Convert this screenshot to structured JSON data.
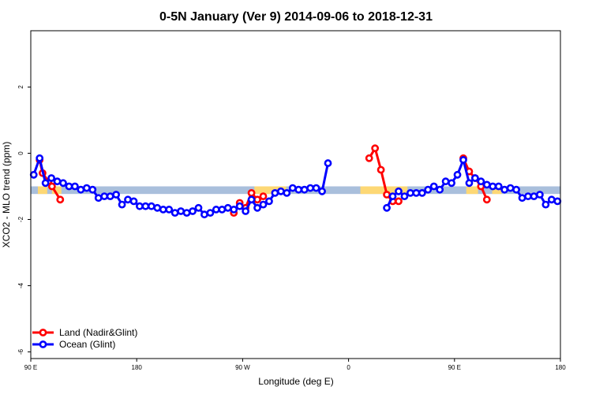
{
  "chart_data": {
    "type": "line",
    "title": "0-5N January (Ver 9)   2014-09-06 to 2018-12-31",
    "xlabel": "Longitude (deg E)",
    "ylabel": "XCO2 - MLO trend (ppm)",
    "xlim": [
      90,
      540
    ],
    "ylim": [
      -6.2,
      3.7
    ],
    "x_ticks": [
      {
        "value": 90,
        "label": "90 E"
      },
      {
        "value": 180,
        "label": "180"
      },
      {
        "value": 270,
        "label": "90 W"
      },
      {
        "value": 360,
        "label": "0"
      },
      {
        "value": 450,
        "label": "90 E"
      },
      {
        "value": 540,
        "label": "180"
      }
    ],
    "y_ticks": [
      {
        "value": 2,
        "label": "2"
      },
      {
        "value": 0,
        "label": "0"
      },
      {
        "value": -2,
        "label": "-2"
      },
      {
        "value": -4,
        "label": "-4"
      },
      {
        "value": -6,
        "label": "-6"
      }
    ],
    "grid": false,
    "legend_position": "bottom-left",
    "surface_band": {
      "y_top": -1.0,
      "y_bottom": -1.23,
      "ocean_color": "#a9bfdc",
      "land_color": "#fdd875",
      "land_segments": [
        [
          96,
          104
        ],
        [
          108,
          116
        ],
        [
          280,
          307
        ],
        [
          370,
          410
        ],
        [
          460,
          470
        ],
        [
          482,
          490
        ]
      ]
    },
    "series": [
      {
        "name": "Land (Nadir&Glint)",
        "color": "#ff0000",
        "segments": [
          [
            [
              97.5,
              -0.2
            ],
            [
              100,
              -0.6
            ],
            [
              105,
              -0.85
            ],
            [
              108,
              -1.0
            ],
            [
              115,
              -1.4
            ]
          ],
          [
            [
              262.5,
              -1.8
            ],
            [
              267.5,
              -1.5
            ],
            [
              272.5,
              -1.65
            ],
            [
              277.5,
              -1.2
            ],
            [
              282.5,
              -1.4
            ],
            [
              287.5,
              -1.3
            ]
          ],
          [
            [
              377.5,
              -0.15
            ],
            [
              382.5,
              0.15
            ],
            [
              387.5,
              -0.5
            ],
            [
              392.5,
              -1.25
            ],
            [
              397.5,
              -1.45
            ],
            [
              402.5,
              -1.45
            ]
          ],
          [
            [
              457.5,
              -0.15
            ],
            [
              462.5,
              -0.55
            ],
            [
              467.5,
              -0.75
            ],
            [
              472.5,
              -1.0
            ],
            [
              477.5,
              -1.4
            ]
          ]
        ]
      },
      {
        "name": "Ocean (Glint)",
        "color": "#0000ff",
        "segments": [
          [
            [
              92.5,
              -0.65
            ],
            [
              97.5,
              -0.15
            ],
            [
              102.5,
              -0.9
            ],
            [
              107.5,
              -0.75
            ],
            [
              112.5,
              -0.85
            ],
            [
              117.5,
              -0.9
            ],
            [
              122.5,
              -1.0
            ],
            [
              127.5,
              -1.0
            ],
            [
              132.5,
              -1.1
            ],
            [
              137.5,
              -1.05
            ],
            [
              142.5,
              -1.1
            ],
            [
              147.5,
              -1.35
            ],
            [
              152.5,
              -1.3
            ],
            [
              157.5,
              -1.3
            ],
            [
              162.5,
              -1.25
            ],
            [
              167.5,
              -1.55
            ],
            [
              172.5,
              -1.4
            ],
            [
              177.5,
              -1.45
            ],
            [
              182.5,
              -1.6
            ],
            [
              187.5,
              -1.6
            ],
            [
              192.5,
              -1.6
            ],
            [
              197.5,
              -1.65
            ],
            [
              202.5,
              -1.7
            ],
            [
              207.5,
              -1.7
            ],
            [
              212.5,
              -1.8
            ],
            [
              217.5,
              -1.75
            ],
            [
              222.5,
              -1.8
            ],
            [
              227.5,
              -1.75
            ],
            [
              232.5,
              -1.65
            ],
            [
              237.5,
              -1.85
            ],
            [
              242.5,
              -1.8
            ],
            [
              247.5,
              -1.7
            ],
            [
              252.5,
              -1.7
            ],
            [
              257.5,
              -1.65
            ],
            [
              262.5,
              -1.7
            ],
            [
              267.5,
              -1.6
            ],
            [
              272.5,
              -1.75
            ],
            [
              277.5,
              -1.4
            ],
            [
              282.5,
              -1.65
            ],
            [
              287.5,
              -1.55
            ],
            [
              292.5,
              -1.45
            ],
            [
              297.5,
              -1.2
            ],
            [
              302.5,
              -1.15
            ],
            [
              307.5,
              -1.2
            ],
            [
              312.5,
              -1.05
            ],
            [
              317.5,
              -1.1
            ],
            [
              322.5,
              -1.1
            ],
            [
              327.5,
              -1.05
            ],
            [
              332.5,
              -1.05
            ],
            [
              337.5,
              -1.15
            ],
            [
              342.5,
              -0.3
            ]
          ],
          [
            [
              392.5,
              -1.65
            ],
            [
              397.5,
              -1.3
            ],
            [
              402.5,
              -1.15
            ],
            [
              407.5,
              -1.3
            ],
            [
              412.5,
              -1.2
            ],
            [
              417.5,
              -1.2
            ],
            [
              422.5,
              -1.2
            ],
            [
              427.5,
              -1.1
            ],
            [
              432.5,
              -1.0
            ],
            [
              437.5,
              -1.1
            ],
            [
              442.5,
              -0.85
            ],
            [
              447.5,
              -0.9
            ],
            [
              452.5,
              -0.65
            ],
            [
              457.5,
              -0.2
            ],
            [
              462.5,
              -0.9
            ],
            [
              467.5,
              -0.75
            ],
            [
              472.5,
              -0.85
            ],
            [
              477.5,
              -0.95
            ],
            [
              482.5,
              -1.0
            ],
            [
              487.5,
              -1.0
            ],
            [
              492.5,
              -1.1
            ],
            [
              497.5,
              -1.05
            ],
            [
              502.5,
              -1.1
            ],
            [
              507.5,
              -1.35
            ],
            [
              512.5,
              -1.3
            ],
            [
              517.5,
              -1.3
            ],
            [
              522.5,
              -1.25
            ],
            [
              527.5,
              -1.55
            ],
            [
              532.5,
              -1.4
            ],
            [
              537.5,
              -1.45
            ]
          ]
        ]
      }
    ]
  }
}
